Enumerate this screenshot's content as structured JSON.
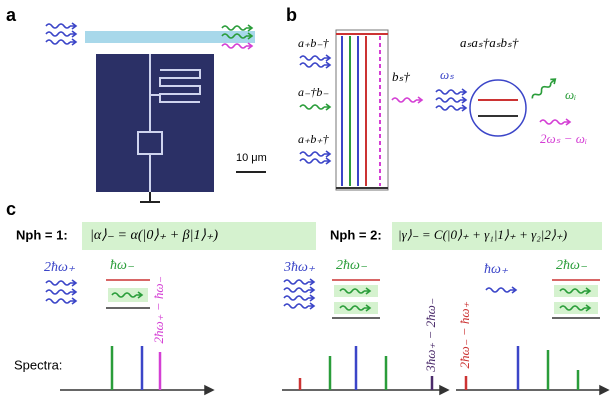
{
  "panels": {
    "a": {
      "label": "a",
      "scale_bar": "10 μm"
    },
    "b": {
      "label": "b",
      "transitions": [
        "a₊b₋†",
        "a₋†b₋",
        "a₊b₊†"
      ],
      "pump": "bₛ†",
      "input": "ωₛ",
      "operator": "aₛaₛ†aₛbₛ†",
      "outputs": [
        "ωᵢ",
        "2ωₛ − ωᵢ"
      ]
    },
    "c": {
      "label": "c",
      "rows": [
        {
          "photon_number": "Nph = 1:",
          "state": "|α⟩₋ = α(|0⟩₊ + β|1⟩₊)"
        },
        {
          "photon_number": "Nph = 2:",
          "state": "|γ⟩₋ = C(|0⟩₊ + γ₁|1⟩₊ + γ₂|2⟩₊)"
        }
      ],
      "subpanels": [
        {
          "inputs": [
            "2ħω₊",
            "ħω₋"
          ],
          "output": "2ħω₊ − ħω₋"
        },
        {
          "inputs": [
            "3ħω₊",
            "2ħω₋"
          ],
          "output": "3ħω₊ − 2ħω₋"
        },
        {
          "inputs": [
            "ħω₊",
            "2ħω₋"
          ],
          "output": "2ħω₋ − ħω₊"
        }
      ],
      "spectra_label": "Spectra:"
    }
  }
}
